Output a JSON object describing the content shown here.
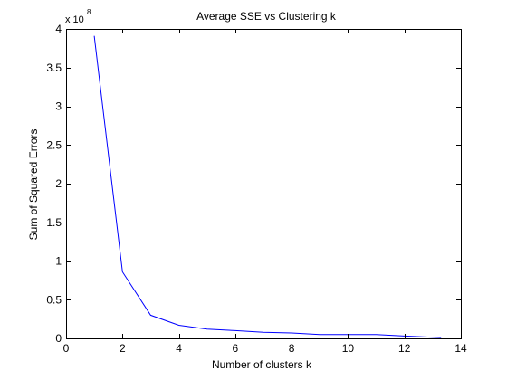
{
  "chart_data": {
    "type": "line",
    "title": "Average SSE vs Clustering k",
    "xlabel": "Number of clusters k",
    "ylabel": "Sum of Squared Errors",
    "exponent_label": "x 10",
    "exponent_power": "8",
    "xlim": [
      0,
      14
    ],
    "ylim": [
      0,
      4
    ],
    "xticks": [
      0,
      2,
      4,
      6,
      8,
      10,
      12,
      14
    ],
    "yticks": [
      0,
      0.5,
      1,
      1.5,
      2,
      2.5,
      3,
      3.5,
      4
    ],
    "xtick_labels": [
      "0",
      "2",
      "4",
      "6",
      "8",
      "10",
      "12",
      "14"
    ],
    "ytick_labels": [
      "0",
      "0.5",
      "1",
      "1.5",
      "2",
      "2.5",
      "3",
      "3.5",
      "4"
    ],
    "grid": false,
    "series": [
      {
        "color": "#0000ff",
        "x": [
          1,
          2,
          3,
          4,
          5,
          6,
          7,
          8,
          9,
          10,
          11,
          12,
          13.3
        ],
        "y": [
          3.91,
          0.86,
          0.3,
          0.17,
          0.12,
          0.1,
          0.08,
          0.07,
          0.05,
          0.05,
          0.05,
          0.03,
          0.01
        ]
      }
    ]
  }
}
